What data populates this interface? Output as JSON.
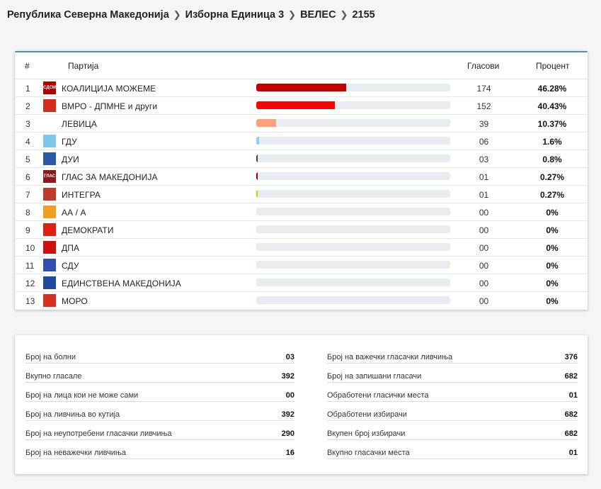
{
  "breadcrumb": {
    "items": [
      "Република Северна Македонија",
      "Изборна Единица 3",
      "ВЕЛЕС",
      "2155"
    ],
    "separator": ">"
  },
  "table": {
    "headers": {
      "num": "#",
      "party": "Партија",
      "votes": "Гласови",
      "percent": "Процент"
    },
    "rows": [
      {
        "num": "1",
        "name": "КОАЛИЦИЈА МОЖЕМЕ",
        "votes": "174",
        "percent": "46.28%",
        "share": 0.4628,
        "color": "#c00000",
        "logo_color": "#b00000",
        "logo_text": "СДСМ"
      },
      {
        "num": "2",
        "name": "ВМРО - ДПМНЕ и други",
        "votes": "152",
        "percent": "40.43%",
        "share": 0.4043,
        "color": "#ff0000",
        "logo_color": "#d62c1a",
        "logo_text": ""
      },
      {
        "num": "3",
        "name": "ЛЕВИЦА",
        "votes": "39",
        "percent": "10.37%",
        "share": 0.1037,
        "color": "#ffa07a",
        "logo_color": "#ffffff",
        "logo_text": ""
      },
      {
        "num": "4",
        "name": "ГДУ",
        "votes": "06",
        "percent": "1.6%",
        "share": 0.016,
        "color": "#87cefa",
        "logo_color": "#7fc6ef",
        "logo_text": ""
      },
      {
        "num": "5",
        "name": "ДУИ",
        "votes": "03",
        "percent": "0.8%",
        "share": 0.008,
        "color": "#1e3f8a",
        "logo_color": "#2b57a8",
        "logo_text": ""
      },
      {
        "num": "6",
        "name": "ГЛАС ЗА МАКЕДОНИЈА",
        "votes": "01",
        "percent": "0.27%",
        "share": 0.0027,
        "color": "#8b0000",
        "logo_color": "#8b1a1a",
        "logo_text": "ГЛАС"
      },
      {
        "num": "7",
        "name": "ИНТЕГРА",
        "votes": "01",
        "percent": "0.27%",
        "share": 0.0027,
        "color": "#c8d400",
        "logo_color": "#c0392b",
        "logo_text": ""
      },
      {
        "num": "8",
        "name": "АА / А",
        "votes": "00",
        "percent": "0%",
        "share": 0,
        "color": "#ff0000",
        "logo_color": "#f0a020",
        "logo_text": ""
      },
      {
        "num": "9",
        "name": "ДЕМОКРАТИ",
        "votes": "00",
        "percent": "0%",
        "share": 0,
        "color": "#ff0000",
        "logo_color": "#e02010",
        "logo_text": ""
      },
      {
        "num": "10",
        "name": "ДПА",
        "votes": "00",
        "percent": "0%",
        "share": 0,
        "color": "#ff0000",
        "logo_color": "#d01010",
        "logo_text": ""
      },
      {
        "num": "11",
        "name": "СДУ",
        "votes": "00",
        "percent": "0%",
        "share": 0,
        "color": "#ff0000",
        "logo_color": "#3050b0",
        "logo_text": ""
      },
      {
        "num": "12",
        "name": "ЕДИНСТВЕНА МАКЕДОНИЈА",
        "votes": "00",
        "percent": "0%",
        "share": 0,
        "color": "#ff0000",
        "logo_color": "#1f4aa0",
        "logo_text": ""
      },
      {
        "num": "13",
        "name": "МОРО",
        "votes": "00",
        "percent": "0%",
        "share": 0,
        "color": "#ff0000",
        "logo_color": "#d83020",
        "logo_text": ""
      }
    ]
  },
  "stats": {
    "left": [
      {
        "label": "Број на болни",
        "value": "03"
      },
      {
        "label": "Вкупно гласале",
        "value": "392"
      },
      {
        "label": "Број на лица кои не може сами",
        "value": "00"
      },
      {
        "label": "Број на ливчиња во кутија",
        "value": "392"
      },
      {
        "label": "Број на неупотребени гласачки ливчиња",
        "value": "290"
      },
      {
        "label": "Број на неважечки ливчиња",
        "value": "16"
      }
    ],
    "right": [
      {
        "label": "Број на важечки гласачки ливчиња",
        "value": "376"
      },
      {
        "label": "Број на запишани гласачи",
        "value": "682"
      },
      {
        "label": "Обработени гласички места",
        "value": "01"
      },
      {
        "label": "Обработени избирачи",
        "value": "682"
      },
      {
        "label": "Вкупен број избирачи",
        "value": "682"
      },
      {
        "label": "Вкупно гласачки места",
        "value": "01"
      }
    ]
  }
}
